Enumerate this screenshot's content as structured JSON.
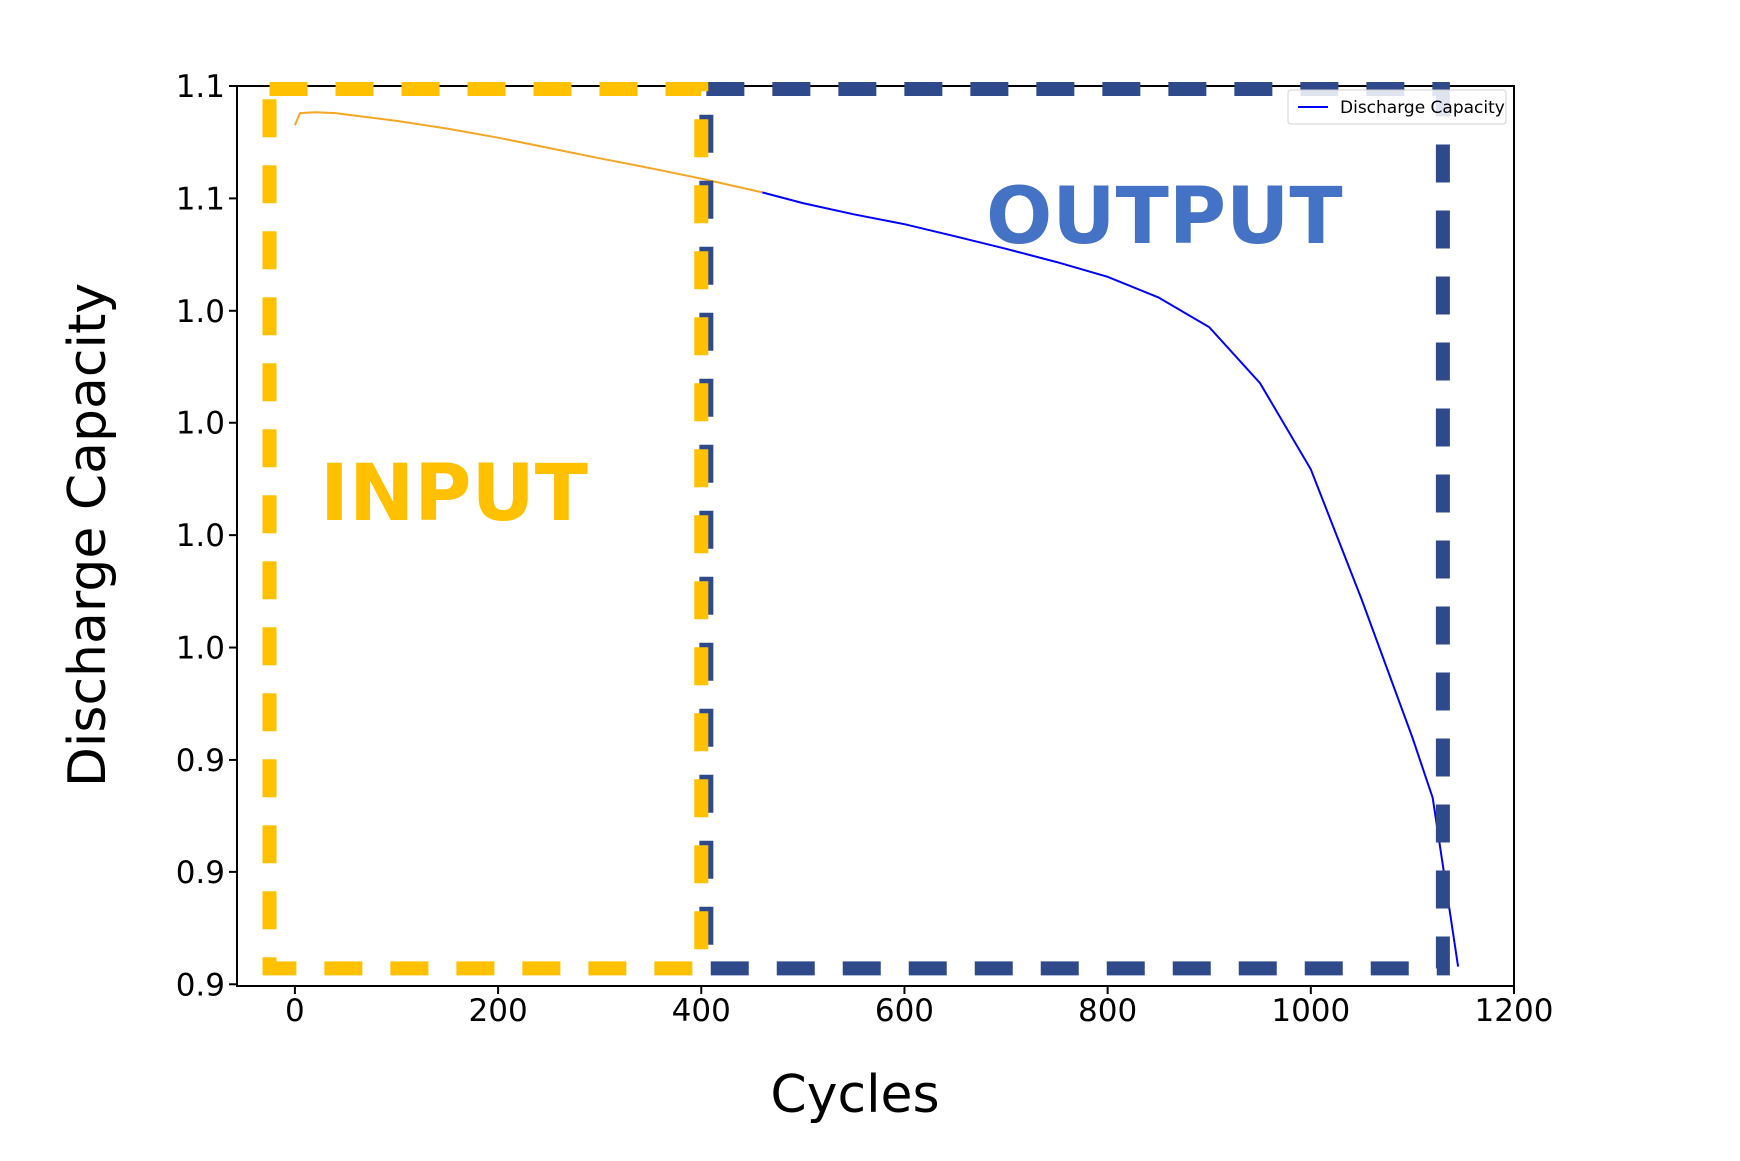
{
  "chart_data": {
    "type": "line",
    "title": "",
    "xlabel": "Cycles",
    "ylabel": "Discharge Capacity",
    "xlim": [
      -57,
      1200
    ],
    "ylim": [
      0.8996,
      1.1086
    ],
    "x_ticks": [
      "0",
      "200",
      "400",
      "600",
      "800",
      "1000",
      "1200"
    ],
    "x_tick_values": [
      0,
      200,
      400,
      600,
      800,
      1000,
      1200
    ],
    "y_ticks": [
      "0.9",
      "0.9",
      "0.9",
      "1.0",
      "1.0",
      "1.0",
      "1.0",
      "1.1",
      "1.1"
    ],
    "y_tick_values": [
      0.9,
      0.9261,
      0.9521,
      0.9782,
      1.0043,
      1.0304,
      1.0564,
      1.0825,
      1.1086
    ],
    "grid": false,
    "legend": {
      "position": "top-right",
      "entries": [
        "Discharge Capacity"
      ]
    },
    "series": [
      {
        "name": "Discharge Capacity",
        "color": "#0000ff",
        "input_color": "#f5a623",
        "input_end_x": 460,
        "x": [
          0,
          5,
          20,
          40,
          60,
          100,
          150,
          200,
          250,
          300,
          350,
          400,
          460,
          500,
          550,
          600,
          650,
          700,
          750,
          800,
          850,
          900,
          950,
          1000,
          1050,
          1100,
          1120,
          1145
        ],
        "y": [
          1.0995,
          1.1023,
          1.1025,
          1.1023,
          1.1017,
          1.1005,
          1.0987,
          1.0966,
          1.0942,
          1.0918,
          1.0895,
          1.0871,
          1.0839,
          1.0814,
          1.0788,
          1.0765,
          1.0737,
          1.0708,
          1.0677,
          1.0643,
          1.0595,
          1.0526,
          1.0396,
          1.0196,
          0.9894,
          0.9573,
          0.9433,
          0.9041
        ]
      }
    ],
    "annotations": [
      {
        "text": "INPUT",
        "color": "#ffc000"
      },
      {
        "text": "OUTPUT",
        "color": "#4472c4"
      }
    ],
    "regions": [
      {
        "name": "input",
        "color": "#ffc000",
        "x_range": [
          -25,
          400
        ],
        "y_range": [
          0.9037,
          1.1079
        ]
      },
      {
        "name": "output",
        "color": "#2f4a8a",
        "x_range": [
          405,
          1130
        ],
        "y_range": [
          0.9037,
          1.1079
        ]
      }
    ]
  }
}
